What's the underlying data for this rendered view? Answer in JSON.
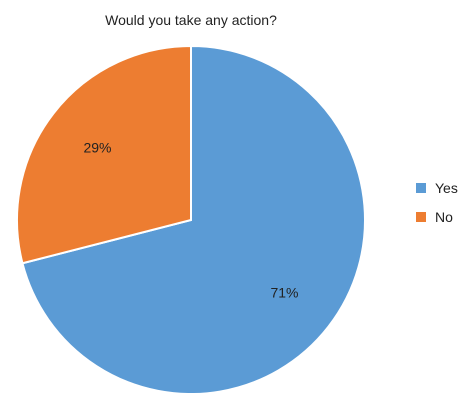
{
  "chart_data": {
    "type": "pie",
    "title": "Would you take any action?",
    "categories": [
      "Yes",
      "No"
    ],
    "values": [
      71,
      29
    ],
    "labels": [
      "71%",
      "29%"
    ],
    "colors": [
      "#5B9BD5",
      "#ED7D31"
    ],
    "legend_position": "right"
  }
}
